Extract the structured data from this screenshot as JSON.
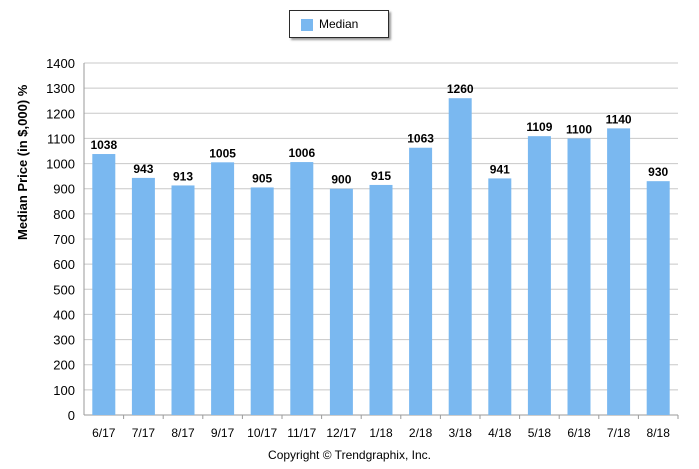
{
  "chart_data": {
    "type": "bar",
    "categories": [
      "6/17",
      "7/17",
      "8/17",
      "9/17",
      "10/17",
      "11/17",
      "12/17",
      "1/18",
      "2/18",
      "3/18",
      "4/18",
      "5/18",
      "6/18",
      "7/18",
      "8/18"
    ],
    "series": [
      {
        "name": "Median",
        "values": [
          1038,
          943,
          913,
          1005,
          905,
          1006,
          900,
          915,
          1063,
          1260,
          941,
          1109,
          1100,
          1140,
          930
        ]
      }
    ],
    "ylabel": "Median Price (in $,000) %",
    "xlabel": "",
    "ylim": [
      0,
      1400
    ],
    "yticks": [
      0,
      100,
      200,
      300,
      400,
      500,
      600,
      700,
      800,
      900,
      1000,
      1100,
      1200,
      1300,
      1400
    ],
    "grid": true,
    "legend_position": "top-center",
    "bar_color": "#7ab8f0",
    "grid_color": "#c8c8c8"
  },
  "legend": {
    "label": "Median"
  },
  "footer": {
    "copyright": "Copyright © Trendgraphix, Inc."
  }
}
